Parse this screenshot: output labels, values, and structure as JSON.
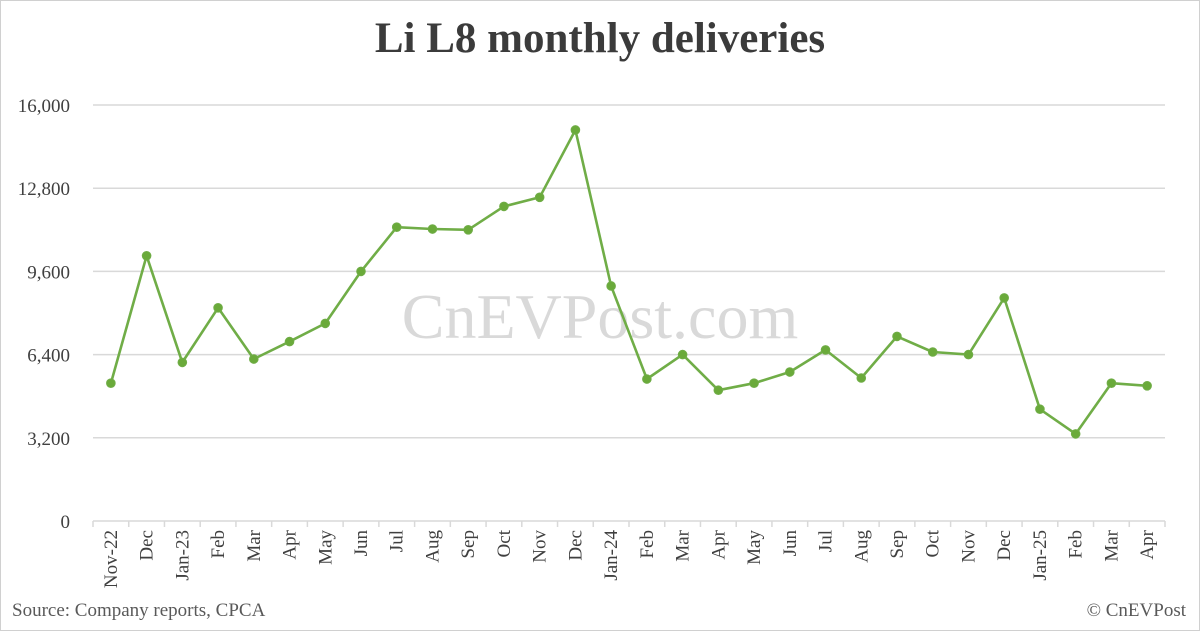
{
  "title": "Li L8 monthly deliveries",
  "footer": {
    "source": "Source: Company reports, CPCA",
    "copyright": "© CnEVPost"
  },
  "watermark": "CnEVPost.com",
  "colors": {
    "line": "#70ad47",
    "marker": "#6aaa3a",
    "grid": "#d9d9d9",
    "text": "#404040"
  },
  "chart_data": {
    "type": "line",
    "title": "Li L8 monthly deliveries",
    "xlabel": "",
    "ylabel": "",
    "ylim": [
      0,
      16000
    ],
    "yticks": [
      0,
      3200,
      6400,
      9600,
      12800,
      16000
    ],
    "ytick_labels": [
      "0",
      "3,200",
      "6,400",
      "9,600",
      "12,800",
      "16,000"
    ],
    "grid": true,
    "legend": "none",
    "categories": [
      "Nov-22",
      "Dec",
      "Jan-23",
      "Feb",
      "Mar",
      "Apr",
      "May",
      "Jun",
      "Jul",
      "Aug",
      "Sep",
      "Oct",
      "Nov",
      "Dec",
      "Jan-24",
      "Feb",
      "Mar",
      "Apr",
      "May",
      "Jun",
      "Jul",
      "Aug",
      "Sep",
      "Oct",
      "Nov",
      "Dec",
      "Jan-25",
      "Feb",
      "Mar",
      "Apr"
    ],
    "series": [
      {
        "name": "Li L8 deliveries",
        "values": [
          5300,
          10200,
          6100,
          8200,
          6230,
          6900,
          7600,
          9600,
          11300,
          11230,
          11200,
          12100,
          12450,
          15040,
          9040,
          5460,
          6400,
          5030,
          5300,
          5730,
          6580,
          5500,
          7100,
          6500,
          6400,
          8580,
          4300,
          3350,
          5300,
          5200
        ]
      }
    ]
  }
}
